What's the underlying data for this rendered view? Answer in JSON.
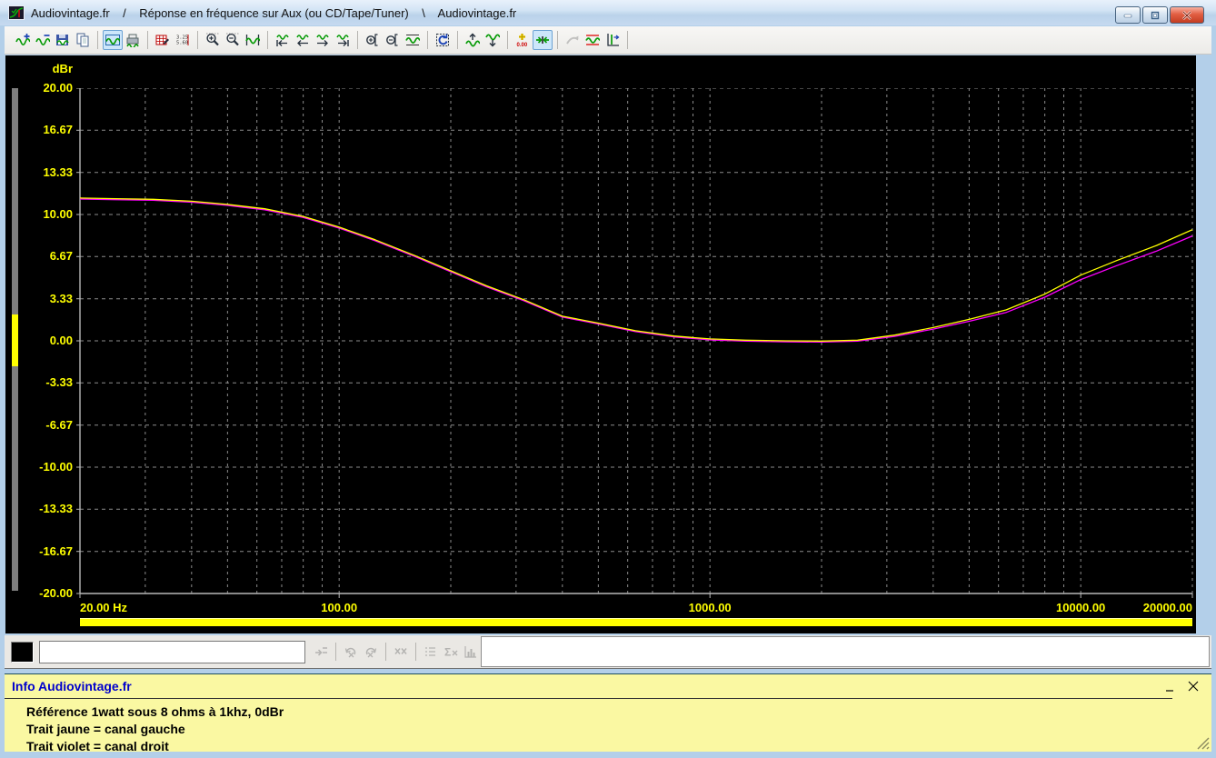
{
  "window": {
    "title": "Audiovintage.fr    /    Réponse en fréquence sur Aux (ou CD/Tape/Tuner)    \\    Audiovintage.fr",
    "controls": [
      "minimize",
      "maximize",
      "close"
    ]
  },
  "toolbar": {
    "items": [
      {
        "icon": "wave-add",
        "name": "add-overlay-button"
      },
      {
        "icon": "wave-minus",
        "name": "remove-overlay-button"
      },
      {
        "icon": "save-wave",
        "name": "save-button"
      },
      {
        "icon": "copy",
        "name": "copy-button"
      },
      "|",
      {
        "icon": "chart-frame",
        "name": "time-series-view-button",
        "sel": true
      },
      {
        "icon": "print-wave",
        "name": "print-button"
      },
      "|",
      {
        "icon": "edit-grid",
        "name": "edit-data-button"
      },
      {
        "icon": "values-list",
        "name": "data-values-button"
      },
      "|",
      {
        "icon": "zoom-in",
        "name": "zoom-in-button"
      },
      {
        "icon": "zoom-out",
        "name": "zoom-out-button"
      },
      {
        "icon": "wave-span",
        "name": "full-span-button"
      },
      "|",
      {
        "icon": "nav-first",
        "name": "go-first-button"
      },
      {
        "icon": "nav-prev",
        "name": "go-previous-button"
      },
      {
        "icon": "nav-next",
        "name": "go-next-button"
      },
      {
        "icon": "nav-last",
        "name": "go-last-button"
      },
      "|",
      {
        "icon": "zoomy-in",
        "name": "zoom-y-in-button"
      },
      {
        "icon": "zoomy-out",
        "name": "zoom-y-out-button"
      },
      {
        "icon": "wave-fit",
        "name": "autoscale-button"
      },
      "|",
      {
        "icon": "replay",
        "name": "replay-button"
      },
      "|",
      {
        "icon": "wave-up",
        "name": "shift-up-button"
      },
      {
        "icon": "wave-down",
        "name": "shift-down-button"
      },
      "|",
      {
        "icon": "zero-ref",
        "name": "zero-reference-button"
      },
      {
        "icon": "collapse",
        "name": "compress-scale-button",
        "sel": true
      },
      "|",
      {
        "icon": "gray-arrow",
        "name": "transfer-button",
        "dis": true
      },
      {
        "icon": "limit-lines",
        "name": "limits-button"
      },
      {
        "icon": "axis-cursor",
        "name": "cursor-button"
      },
      "|"
    ]
  },
  "chart_data": {
    "type": "line",
    "title": "",
    "ylabel": "dBr",
    "xscale": "log",
    "xlim": [
      20,
      20000
    ],
    "ylim": [
      -20,
      20
    ],
    "grid": true,
    "y_ticks": [
      "20.00",
      "16.67",
      "13.33",
      "10.00",
      "6.67",
      "3.33",
      "0.00",
      "-3.33",
      "-6.67",
      "-10.00",
      "-13.33",
      "-16.67",
      "-20.00"
    ],
    "x_ticks": [
      {
        "f": 20,
        "label": "20.00 Hz"
      },
      {
        "f": 100,
        "label": "100.00"
      },
      {
        "f": 1000,
        "label": "1000.00"
      },
      {
        "f": 10000,
        "label": "10000.00"
      },
      {
        "f": 20000,
        "label": "20000.00"
      }
    ],
    "series": [
      {
        "name": "canal droit",
        "color": "#ff00ff",
        "points": [
          [
            20,
            11.22
          ],
          [
            25,
            11.17
          ],
          [
            31.5,
            11.12
          ],
          [
            40,
            10.97
          ],
          [
            50,
            10.72
          ],
          [
            63,
            10.37
          ],
          [
            80,
            9.77
          ],
          [
            100,
            8.92
          ],
          [
            125,
            7.92
          ],
          [
            160,
            6.67
          ],
          [
            200,
            5.47
          ],
          [
            250,
            4.27
          ],
          [
            315,
            3.17
          ],
          [
            400,
            1.88
          ],
          [
            500,
            1.33
          ],
          [
            630,
            0.73
          ],
          [
            800,
            0.31
          ],
          [
            1000,
            0.07
          ],
          [
            1250,
            -0.03
          ],
          [
            1600,
            -0.08
          ],
          [
            2000,
            -0.1
          ],
          [
            2500,
            -0.03
          ],
          [
            3150,
            0.35
          ],
          [
            4000,
            0.93
          ],
          [
            5000,
            1.55
          ],
          [
            6300,
            2.25
          ],
          [
            8000,
            3.45
          ],
          [
            10000,
            4.85
          ],
          [
            12500,
            5.95
          ],
          [
            16000,
            7.1
          ],
          [
            20000,
            8.3
          ]
        ]
      },
      {
        "name": "canal gauche",
        "color": "#ffff00",
        "points": [
          [
            20,
            11.3
          ],
          [
            25,
            11.25
          ],
          [
            31.5,
            11.2
          ],
          [
            40,
            11.05
          ],
          [
            50,
            10.8
          ],
          [
            63,
            10.45
          ],
          [
            80,
            9.85
          ],
          [
            100,
            9.0
          ],
          [
            125,
            8.0
          ],
          [
            160,
            6.75
          ],
          [
            200,
            5.55
          ],
          [
            250,
            4.35
          ],
          [
            315,
            3.25
          ],
          [
            400,
            1.95
          ],
          [
            500,
            1.4
          ],
          [
            630,
            0.8
          ],
          [
            800,
            0.38
          ],
          [
            1000,
            0.15
          ],
          [
            1250,
            0.05
          ],
          [
            1600,
            0.0
          ],
          [
            2000,
            -0.02
          ],
          [
            2500,
            0.05
          ],
          [
            3150,
            0.45
          ],
          [
            4000,
            1.05
          ],
          [
            5000,
            1.7
          ],
          [
            6300,
            2.45
          ],
          [
            8000,
            3.7
          ],
          [
            10000,
            5.2
          ],
          [
            12500,
            6.35
          ],
          [
            16000,
            7.55
          ],
          [
            20000,
            8.8
          ]
        ]
      }
    ]
  },
  "bottom_toolbar": {
    "swatch_color": "#000000",
    "input_value": "",
    "items": [
      {
        "icon": "merge",
        "name": "apply-marker-button",
        "dis": true
      },
      "|",
      {
        "icon": "undo-x",
        "name": "undo-marker-button",
        "dis": true
      },
      {
        "icon": "redo-x",
        "name": "redo-marker-button",
        "dis": true
      },
      "|",
      {
        "icon": "xx",
        "name": "clear-markers-button",
        "dis": true
      },
      "|",
      {
        "icon": "list-minus",
        "name": "marker-list-button",
        "dis": true
      },
      {
        "icon": "sigma-x",
        "name": "sum-button",
        "dis": true
      },
      {
        "icon": "histo",
        "name": "distribution-button",
        "dis": true
      }
    ]
  },
  "info": {
    "header": "Info Audiovintage.fr",
    "lines": [
      "Référence 1watt sous 8 ohms à 1khz, 0dBr",
      "Trait jaune = canal gauche",
      "Trait violet = canal droit"
    ]
  },
  "colors": {
    "chart_bg": "#000000",
    "axis_text": "#ffff00",
    "grid": "#8c8c8c",
    "left_channel": "#ffff00",
    "right_channel": "#ff00ff",
    "position_bar": "#ffff00",
    "info_bg": "#faf8a2",
    "info_header_text": "#0000cc"
  }
}
